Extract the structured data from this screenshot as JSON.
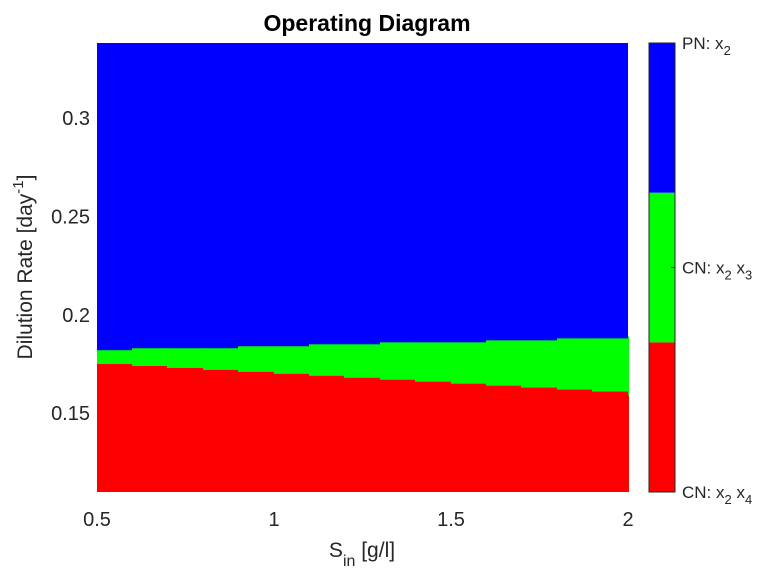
{
  "chart_data": {
    "type": "heatmap",
    "title": "Operating Diagram",
    "xlabel": {
      "main": "S",
      "sub": "in",
      "rest": " [g/l]"
    },
    "ylabel": {
      "main": "Dilution Rate [day",
      "sup": "-1",
      "rest": "]"
    },
    "xlim": [
      0.5,
      2.0
    ],
    "ylim": [
      0.11,
      0.338
    ],
    "x_ticks": [
      {
        "value": 0.5,
        "label": "0.5"
      },
      {
        "value": 1.0,
        "label": "1"
      },
      {
        "value": 1.5,
        "label": "1.5"
      },
      {
        "value": 2.0,
        "label": "2"
      }
    ],
    "y_ticks": [
      {
        "value": 0.15,
        "label": "0.15"
      },
      {
        "value": 0.2,
        "label": "0.2"
      },
      {
        "value": 0.25,
        "label": "0.25"
      },
      {
        "value": 0.3,
        "label": "0.3"
      }
    ],
    "regions": [
      {
        "name": "CN: x2 x4",
        "color": "#ff0000"
      },
      {
        "name": "CN: x2 x3",
        "color": "#00ff00"
      },
      {
        "name": "PN: x2",
        "color": "#0000ff"
      }
    ],
    "x_step": 0.1,
    "lower_boundary": [
      0.175,
      0.174,
      0.173,
      0.172,
      0.171,
      0.17,
      0.169,
      0.168,
      0.167,
      0.166,
      0.165,
      0.164,
      0.163,
      0.162,
      0.161,
      0.159
    ],
    "upper_boundary": [
      0.182,
      0.183,
      0.183,
      0.183,
      0.184,
      0.184,
      0.185,
      0.185,
      0.186,
      0.186,
      0.186,
      0.187,
      0.187,
      0.188,
      0.188,
      0.189
    ],
    "colorbar": {
      "labels": [
        {
          "main": "PN: x",
          "subs": [
            "2"
          ]
        },
        {
          "main": "CN: x",
          "subs": [
            "2",
            "3"
          ]
        },
        {
          "main": "CN: x",
          "subs": [
            "2",
            "4"
          ]
        }
      ]
    }
  }
}
